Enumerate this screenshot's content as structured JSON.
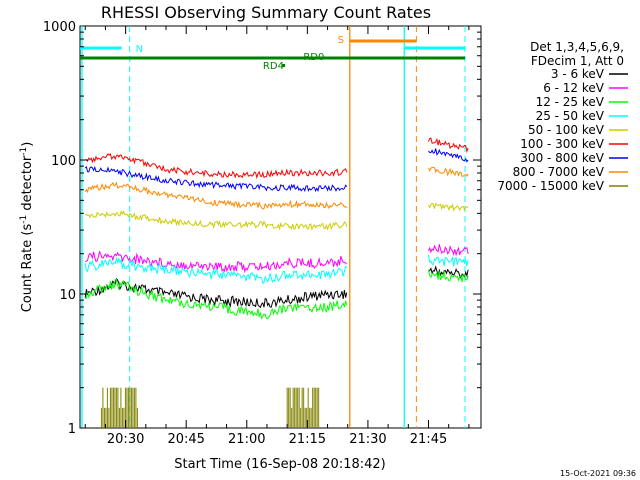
{
  "chart_data": {
    "type": "line",
    "title": "RHESSI Observing Summary Count Rates",
    "xlabel": "Start Time (16-Sep-08 20:18:42)",
    "ylabel_main": "Count Rate (s",
    "ylabel_sup1": "-1",
    "ylabel_mid": " detector",
    "ylabel_sup2": "-1",
    "ylabel_end": ")",
    "yscale": "log",
    "xlim": [
      "20:18:42",
      "21:58:00"
    ],
    "ylim": [
      1,
      1000
    ],
    "x_ticks": [
      "20:30",
      "20:45",
      "21:00",
      "21:15",
      "21:30",
      "21:45"
    ],
    "y_ticks": [
      {
        "value": 1,
        "label": "1"
      },
      {
        "value": 10,
        "label": "10"
      },
      {
        "value": 100,
        "label": "100"
      },
      {
        "value": 1000,
        "label": "1000"
      }
    ],
    "legend_placement": "right",
    "legend_header": [
      "Det 1,3,4,5,6,9,",
      "FDecim 1, Att 0"
    ],
    "series": [
      {
        "name": "3 - 6 keV",
        "color": "#000000",
        "segments": [
          {
            "x": [
              "20:20",
              "20:28",
              "20:40",
              "20:52",
              "21:05",
              "21:10",
              "21:20",
              "21:25"
            ],
            "y": [
              10,
              12,
              10,
              9,
              8.5,
              9,
              10,
              10
            ]
          },
          {
            "x": [
              "21:45",
              "21:55"
            ],
            "y": [
              15,
              14
            ]
          }
        ]
      },
      {
        "name": "6 - 12 keV",
        "color": "#ff00ff",
        "segments": [
          {
            "x": [
              "20:20",
              "20:28",
              "20:40",
              "20:52",
              "21:05",
              "21:10",
              "21:20",
              "21:25"
            ],
            "y": [
              19,
              19,
              17,
              16,
              16,
              17,
              17,
              18
            ]
          },
          {
            "x": [
              "21:45",
              "21:55"
            ],
            "y": [
              22,
              21
            ]
          }
        ]
      },
      {
        "name": "12 - 25 keV",
        "color": "#00ff00",
        "segments": [
          {
            "x": [
              "20:20",
              "20:28",
              "20:40",
              "20:52",
              "21:05",
              "21:10",
              "21:20",
              "21:25"
            ],
            "y": [
              10,
              12,
              9,
              8,
              7,
              8,
              8,
              8.5
            ]
          },
          {
            "x": [
              "21:45",
              "21:55"
            ],
            "y": [
              14,
              13
            ]
          }
        ]
      },
      {
        "name": "25 - 50 keV",
        "color": "#00ffff",
        "segments": [
          {
            "x": [
              "20:20",
              "20:28",
              "20:40",
              "20:52",
              "21:05",
              "21:10",
              "21:20",
              "21:25"
            ],
            "y": [
              16,
              17,
              15,
              14,
              13,
              14,
              14,
              15
            ]
          },
          {
            "x": [
              "21:45",
              "21:55"
            ],
            "y": [
              18,
              17
            ]
          }
        ]
      },
      {
        "name": "50 - 100 keV",
        "color": "#cccc00",
        "segments": [
          {
            "x": [
              "20:20",
              "20:28",
              "20:40",
              "20:52",
              "21:05",
              "21:10",
              "21:20",
              "21:25"
            ],
            "y": [
              38,
              40,
              35,
              33,
              33,
              32,
              32,
              33
            ]
          },
          {
            "x": [
              "21:45",
              "21:55"
            ],
            "y": [
              46,
              43
            ]
          }
        ]
      },
      {
        "name": "100 - 300 keV",
        "color": "#ff0000",
        "segments": [
          {
            "x": [
              "20:20",
              "20:28",
              "20:40",
              "20:52",
              "21:05",
              "21:10",
              "21:20",
              "21:25"
            ],
            "y": [
              100,
              108,
              85,
              78,
              78,
              80,
              80,
              82
            ]
          },
          {
            "x": [
              "21:45",
              "21:55"
            ],
            "y": [
              140,
              120
            ]
          }
        ]
      },
      {
        "name": "300 - 800 keV",
        "color": "#0000ff",
        "segments": [
          {
            "x": [
              "20:20",
              "20:28",
              "20:40",
              "20:52",
              "21:05",
              "21:10",
              "21:20",
              "21:25"
            ],
            "y": [
              85,
              82,
              70,
              65,
              62,
              62,
              62,
              62
            ]
          },
          {
            "x": [
              "21:45",
              "21:55"
            ],
            "y": [
              120,
              100
            ]
          }
        ]
      },
      {
        "name": "800 - 7000 keV",
        "color": "#ff8800",
        "segments": [
          {
            "x": [
              "20:20",
              "20:28",
              "20:40",
              "20:52",
              "21:05",
              "21:10",
              "21:20",
              "21:25"
            ],
            "y": [
              60,
              65,
              55,
              48,
              45,
              47,
              46,
              46
            ]
          },
          {
            "x": [
              "21:45",
              "21:55"
            ],
            "y": [
              85,
              78
            ]
          }
        ]
      },
      {
        "name": "7000 - 15000 keV",
        "color": "#808000",
        "segments": [
          {
            "x": [
              "20:24",
              "20:33",
              "21:10",
              "21:18"
            ],
            "y": [
              2,
              2,
              2,
              2
            ]
          }
        ]
      }
    ],
    "annotations": [
      {
        "label": "N",
        "color": "#00ffff",
        "x": "20:31"
      },
      {
        "label": "S",
        "color": "#ff8800",
        "x": "21:26"
      },
      {
        "label": "RD0",
        "color": "#008000",
        "x": "21:15"
      },
      {
        "label": "RD4",
        "color": "#008000",
        "x": "21:08"
      }
    ],
    "footer_date": "15-Oct-2021 09:36"
  }
}
